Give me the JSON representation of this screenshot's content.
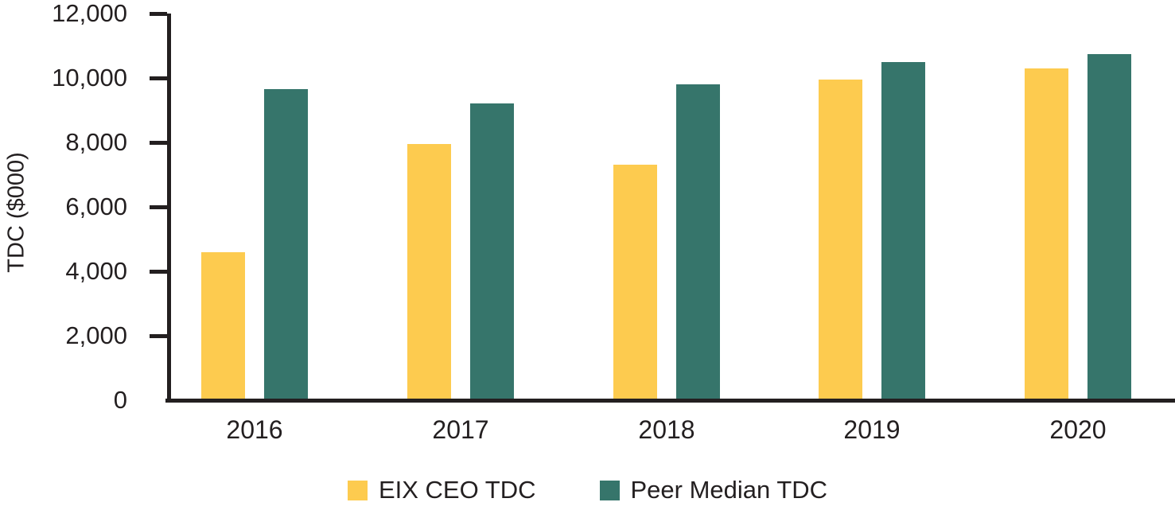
{
  "page": {
    "background": "#FFFFFF"
  },
  "chart_data": {
    "type": "bar",
    "title": "",
    "ylabel": "TDC ($000)",
    "xlabel": "",
    "ylim": [
      0,
      12000
    ],
    "grid": false,
    "legend_position": "bottom-center",
    "axis_color": "#231F20",
    "text_color": "#231F20",
    "categories": [
      "2016",
      "2017",
      "2018",
      "2019",
      "2020"
    ],
    "series": [
      {
        "name": "EIX CEO TDC",
        "color": "#FDCB4F",
        "values": [
          4600,
          7950,
          7300,
          9950,
          10300
        ]
      },
      {
        "name": "Peer Median TDC",
        "color": "#36756B",
        "values": [
          9650,
          9200,
          9800,
          10500,
          10750
        ]
      }
    ],
    "yticks": [
      {
        "value": 0,
        "label": "0"
      },
      {
        "value": 2000,
        "label": "2,000"
      },
      {
        "value": 4000,
        "label": "4,000"
      },
      {
        "value": 6000,
        "label": "6,000"
      },
      {
        "value": 8000,
        "label": "8,000"
      },
      {
        "value": 10000,
        "label": "10,000"
      },
      {
        "value": 12000,
        "label": "12,000"
      }
    ]
  }
}
